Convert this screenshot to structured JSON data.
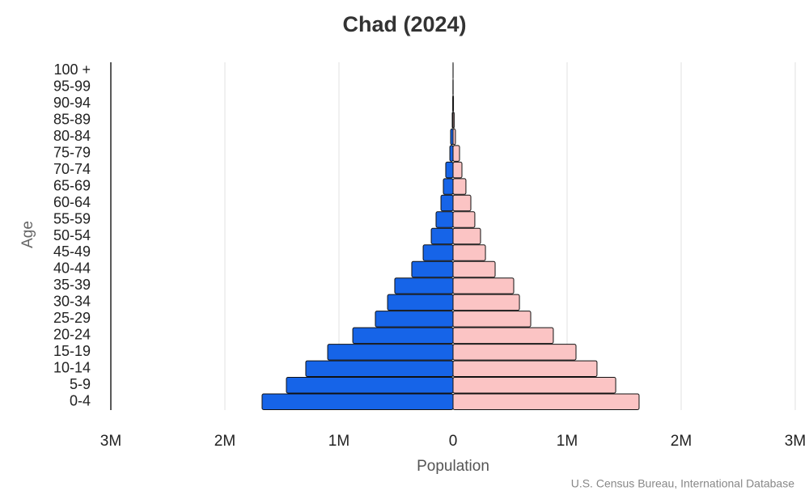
{
  "chart_data": {
    "type": "pyramid",
    "title": "Chad (2024)",
    "x_label": "Population",
    "y_label": "Age",
    "source": "U.S. Census Bureau, International Database",
    "categories": [
      "0-4",
      "5-9",
      "10-14",
      "15-19",
      "20-24",
      "25-29",
      "30-34",
      "35-39",
      "40-44",
      "45-49",
      "50-54",
      "55-59",
      "60-64",
      "65-69",
      "70-74",
      "75-79",
      "80-84",
      "85-89",
      "90-94",
      "95-99",
      "100 +"
    ],
    "series": [
      {
        "color": "#1664e8",
        "values": [
          -1674000,
          -1461000,
          -1291000,
          -1099000,
          -879000,
          -681000,
          -574000,
          -511000,
          -362000,
          -262000,
          -191000,
          -149000,
          -106000,
          -85000,
          -64000,
          -28000,
          -21000,
          -7000,
          -3000,
          -1000,
          -300
        ]
      },
      {
        "color": "#fbc4c4",
        "values": [
          1631000,
          1426000,
          1262000,
          1078000,
          879000,
          681000,
          582000,
          532000,
          369000,
          284000,
          241000,
          191000,
          156000,
          113000,
          78000,
          57000,
          21000,
          10000,
          4000,
          1000,
          500
        ]
      }
    ],
    "xlim": [
      -3000000,
      3000000
    ],
    "xticks": [
      {
        "value": -3000000,
        "label": "3M"
      },
      {
        "value": -2000000,
        "label": "2M"
      },
      {
        "value": -1000000,
        "label": "1M"
      },
      0,
      {
        "value": 1000000,
        "label": "1M"
      },
      {
        "value": 2000000,
        "label": "2M"
      },
      {
        "value": 3000000,
        "label": "3M"
      }
    ],
    "grid": true
  }
}
